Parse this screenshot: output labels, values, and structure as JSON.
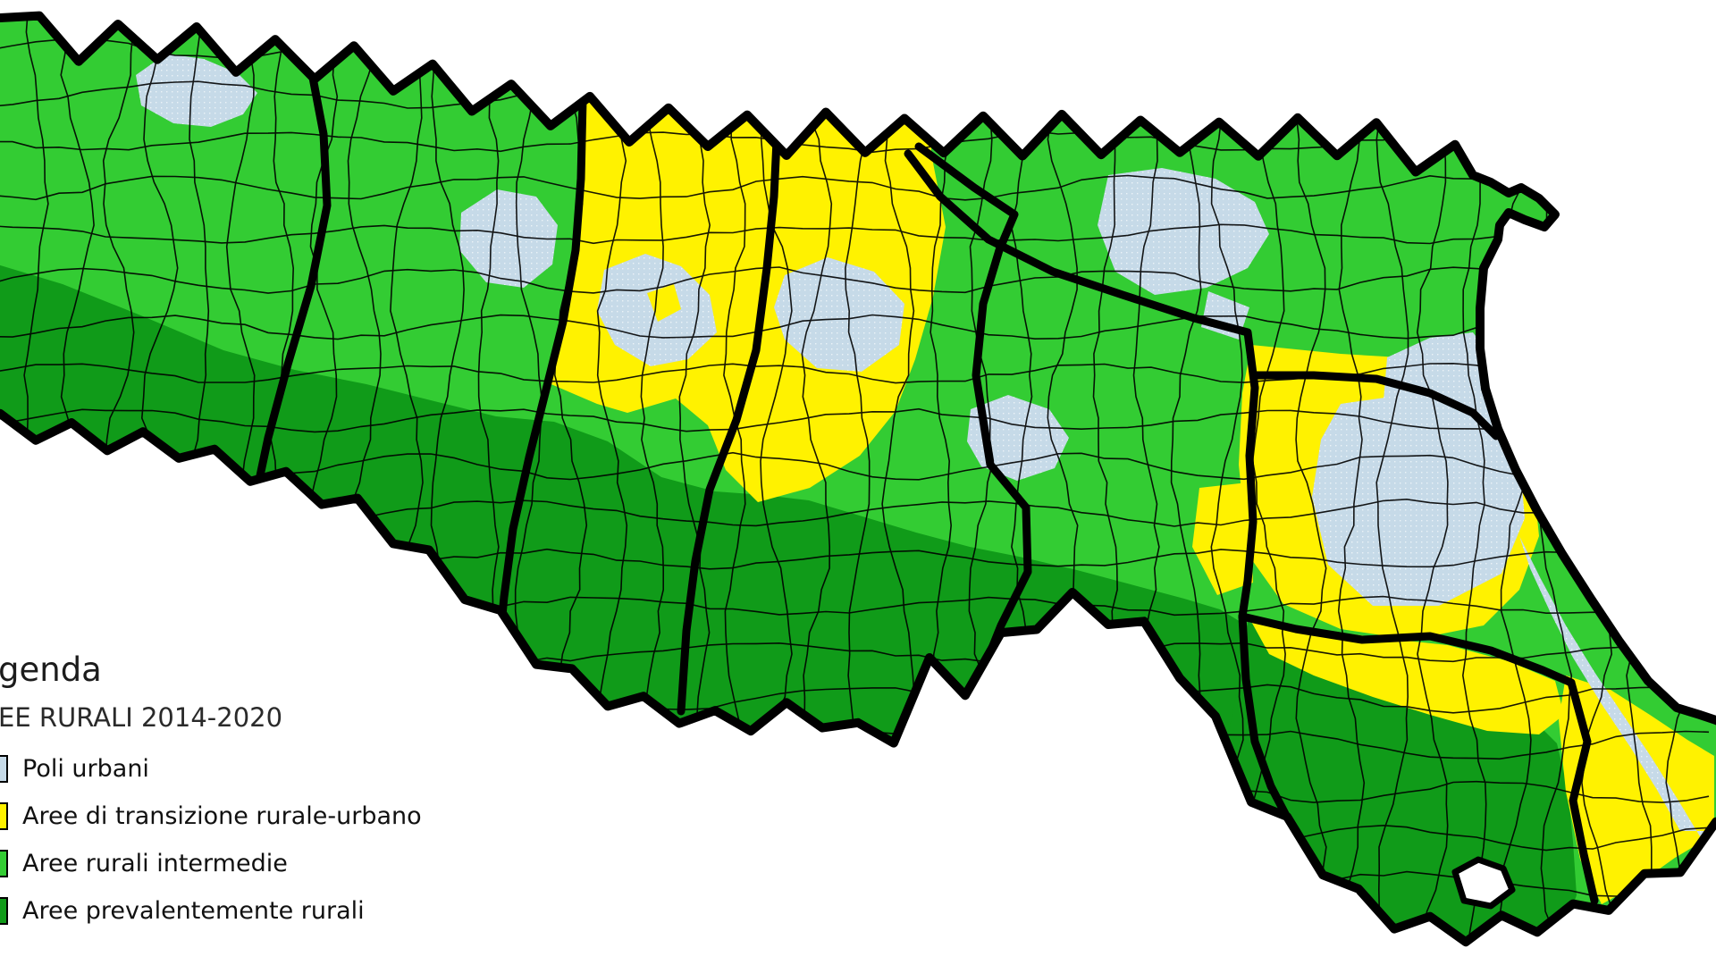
{
  "legend": {
    "title": "genda",
    "subtitle": "EE RURALI 2014-2020",
    "items": [
      {
        "id": "poli-urbani",
        "label": "Poli urbani",
        "color": "#C6DAE8"
      },
      {
        "id": "transizione",
        "label": "Aree di transizione rurale-urbano",
        "color": "#FFF200"
      },
      {
        "id": "intermedie",
        "label": "Aree rurali intermedie",
        "color": "#33CC33"
      },
      {
        "id": "prevalentemente-rurali",
        "label": "Aree prevalentemente rurali",
        "color": "#109B19"
      }
    ]
  },
  "map": {
    "background_color": "#FFFFFF",
    "boundary_color": "#000000",
    "enclave_color": "#FFFFFF",
    "urban_area_texture": "dot-grid"
  }
}
